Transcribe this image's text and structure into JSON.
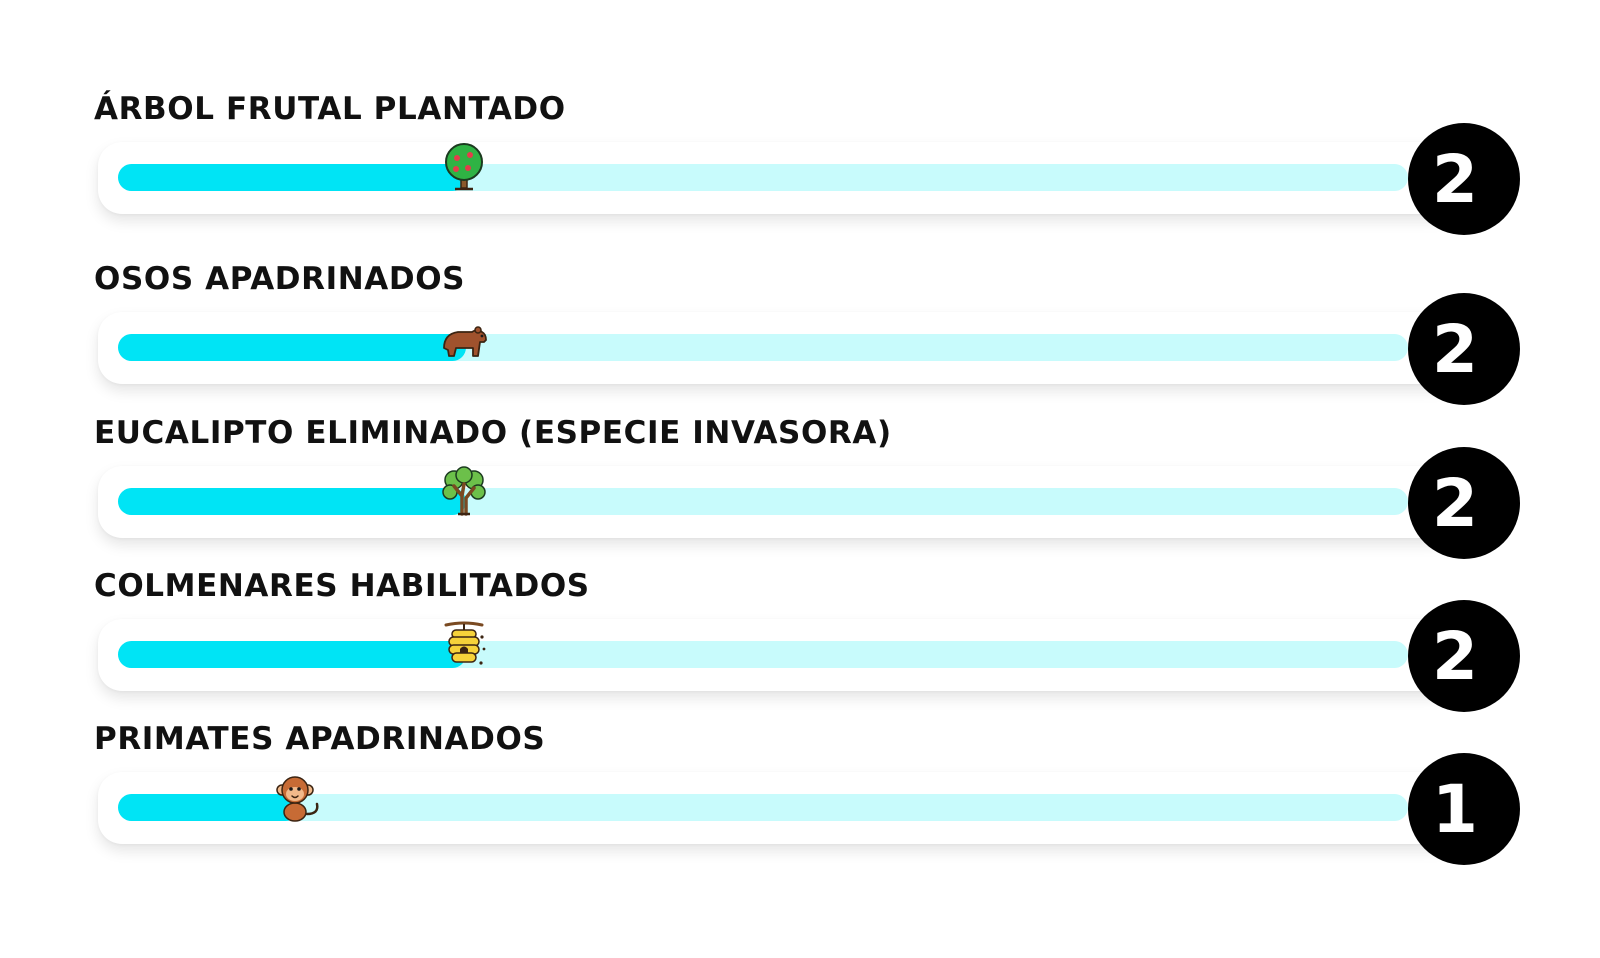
{
  "colors": {
    "fill": "#00e4f5",
    "track": "#c8fbfc",
    "badge": "#000000",
    "text": "#111111"
  },
  "metrics": [
    {
      "label": "ÁRBOL FRUTAL PLANTADO",
      "count": "2",
      "progress": 0.27,
      "icon": "fruit-tree-icon"
    },
    {
      "label": "OSOS APADRINADOS",
      "count": "2",
      "progress": 0.27,
      "icon": "bear-icon"
    },
    {
      "label": "EUCALIPTO ELIMINADO (ESPECIE INVASORA)",
      "count": "2",
      "progress": 0.27,
      "icon": "eucalyptus-tree-icon"
    },
    {
      "label": "COLMENARES HABILITADOS",
      "count": "2",
      "progress": 0.27,
      "icon": "beehive-icon"
    },
    {
      "label": "PRIMATES APADRINADOS",
      "count": "1",
      "progress": 0.14,
      "icon": "monkey-icon"
    }
  ]
}
